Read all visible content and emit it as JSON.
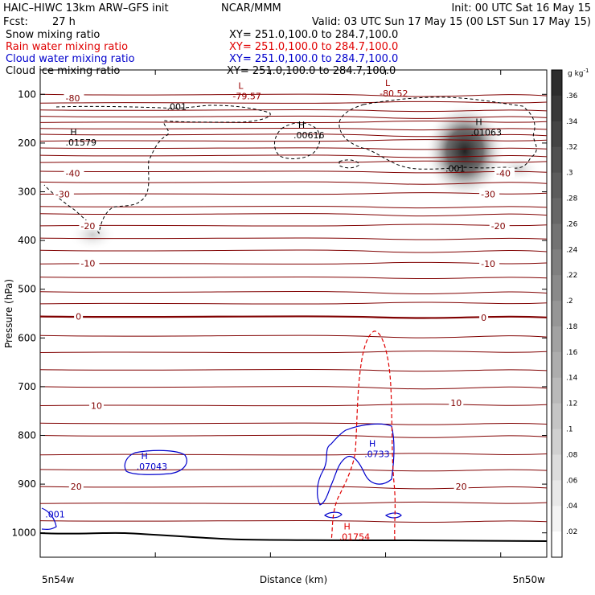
{
  "header": {
    "title": "HAIC–HIWC 13km ARW–GFS init",
    "org": "NCAR/MMM",
    "init": "Init: 00 UTC Sat 16 May 15",
    "fcst_label": "Fcst:",
    "fcst_value": "27 h",
    "valid": "Valid: 03 UTC Sun 17 May 15 (00 LST Sun 17 May 15)"
  },
  "fields": [
    {
      "name": "Snow mixing ratio",
      "xy": "XY= 251.0,100.0 to 284.7,100.0",
      "color": "#000000"
    },
    {
      "name": "Rain water mixing ratio",
      "xy": "XY= 251.0,100.0 to 284.7,100.0",
      "color": "#e00000"
    },
    {
      "name": "Cloud water mixing ratio",
      "xy": "XY= 251.0,100.0 to 284.7,100.0",
      "color": "#0000cc"
    },
    {
      "name": "Cloud ice mixing ratio",
      "xy": "XY= 251.0,100.0 to 284.7,100.0",
      "color": "#000000"
    }
  ],
  "chart_data": {
    "type": "cross-section",
    "xlabel": "Distance (km)",
    "ylabel": "Pressure (hPa)",
    "x_endpoints": [
      "5n54w",
      "5n50w"
    ],
    "ylim": [
      1050,
      50
    ],
    "yticks": [
      100,
      200,
      300,
      400,
      500,
      600,
      700,
      800,
      900,
      1000
    ],
    "colorbar": {
      "unit": "g kg",
      "unit_exp": "-1",
      "ticks": [
        ".36",
        ".34",
        ".32",
        ".3",
        ".28",
        ".26",
        ".24",
        ".22",
        ".2",
        ".18",
        ".16",
        ".14",
        ".12",
        ".1",
        ".08",
        ".06",
        ".04",
        ".02"
      ]
    },
    "temperature_labels": [
      {
        "text": "-80",
        "x": 0.05,
        "p": 108
      },
      {
        "text": "-40",
        "x": 0.05,
        "p": 262
      },
      {
        "text": "-40",
        "x": 0.9,
        "p": 262
      },
      {
        "text": "-30",
        "x": 0.03,
        "p": 305
      },
      {
        "text": "-30",
        "x": 0.87,
        "p": 305
      },
      {
        "text": "-20",
        "x": 0.08,
        "p": 370
      },
      {
        "text": "-20",
        "x": 0.89,
        "p": 370
      },
      {
        "text": "-10",
        "x": 0.08,
        "p": 447
      },
      {
        "text": "-10",
        "x": 0.87,
        "p": 448
      },
      {
        "text": "0",
        "x": 0.07,
        "p": 556
      },
      {
        "text": "0",
        "x": 0.87,
        "p": 558
      },
      {
        "text": "10",
        "x": 0.1,
        "p": 739
      },
      {
        "text": "10",
        "x": 0.81,
        "p": 733
      },
      {
        "text": "20",
        "x": 0.06,
        "p": 905
      },
      {
        "text": "20",
        "x": 0.82,
        "p": 905
      }
    ],
    "extrema": [
      {
        "kind": "L",
        "value": "-79.57",
        "x": 0.38,
        "p": 95,
        "color": "#990000"
      },
      {
        "kind": "L",
        "value": "-80.52",
        "x": 0.67,
        "p": 90,
        "color": "#990000"
      },
      {
        "kind": "H",
        "value": ".01579",
        "x": 0.05,
        "p": 190,
        "color": "#000000"
      },
      {
        "kind": "H",
        "value": ".00616",
        "x": 0.5,
        "p": 175,
        "color": "#000000"
      },
      {
        "kind": "H",
        "value": ".01063",
        "x": 0.85,
        "p": 170,
        "color": "#000000"
      },
      {
        "kind": "H",
        "value": ".07043",
        "x": 0.19,
        "p": 855,
        "color": "#0000cc"
      },
      {
        "kind": "H",
        "value": ".0733",
        "x": 0.64,
        "p": 830,
        "color": "#0000cc"
      },
      {
        "kind": "H",
        "value": ".01754",
        "x": 0.59,
        "p": 1000,
        "color": "#e00000"
      }
    ],
    "contour_labels": [
      {
        "text": ".001",
        "x": 0.25,
        "p": 125,
        "color": "#000000"
      },
      {
        "text": ".001",
        "x": 0.8,
        "p": 252,
        "color": "#000000"
      },
      {
        "text": ".001",
        "x": 0.01,
        "p": 962,
        "color": "#0000cc"
      }
    ]
  }
}
